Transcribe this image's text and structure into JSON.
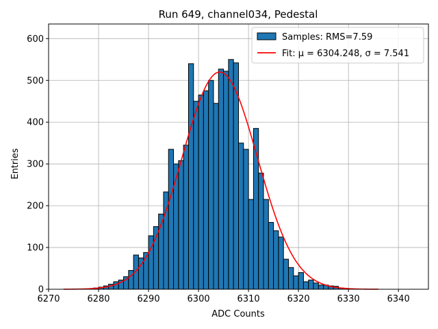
{
  "chart_data": {
    "type": "bar",
    "title": "Run 649, channel034, Pedestal",
    "xlabel": "ADC Counts",
    "ylabel": "Entries",
    "xlim": [
      6270,
      6346
    ],
    "ylim": [
      0,
      635
    ],
    "xticks": [
      6270,
      6280,
      6290,
      6300,
      6310,
      6320,
      6330,
      6340
    ],
    "yticks": [
      0,
      100,
      200,
      300,
      400,
      500,
      600
    ],
    "grid": true,
    "legend_position": "top-right",
    "bin_width": 1,
    "bins": [
      6279,
      6280,
      6281,
      6282,
      6283,
      6284,
      6285,
      6286,
      6287,
      6288,
      6289,
      6290,
      6291,
      6292,
      6293,
      6294,
      6295,
      6296,
      6297,
      6298,
      6299,
      6300,
      6301,
      6302,
      6303,
      6304,
      6305,
      6306,
      6307,
      6308,
      6309,
      6310,
      6311,
      6312,
      6313,
      6314,
      6315,
      6316,
      6317,
      6318,
      6319,
      6320,
      6321,
      6322,
      6323,
      6324,
      6325,
      6326,
      6327,
      6328,
      6329
    ],
    "series": [
      {
        "name": "Samples: RMS=7.59",
        "type": "histogram",
        "color": "#1f77b4",
        "edge": "#000000",
        "values": [
          3,
          5,
          8,
          12,
          18,
          22,
          30,
          45,
          82,
          75,
          88,
          128,
          150,
          180,
          233,
          335,
          300,
          308,
          345,
          540,
          450,
          465,
          475,
          500,
          445,
          527,
          522,
          550,
          542,
          350,
          335,
          215,
          385,
          278,
          215,
          160,
          140,
          125,
          72,
          52,
          32,
          40,
          18,
          22,
          15,
          10,
          10,
          8,
          7,
          3,
          2
        ]
      },
      {
        "name": "Fit: μ = 6304.248, σ = 7.541",
        "type": "gaussian",
        "color": "#ff0000",
        "mu": 6304.248,
        "sigma": 7.541,
        "amplitude": 520,
        "x_range": [
          6273,
          6336
        ]
      }
    ]
  }
}
